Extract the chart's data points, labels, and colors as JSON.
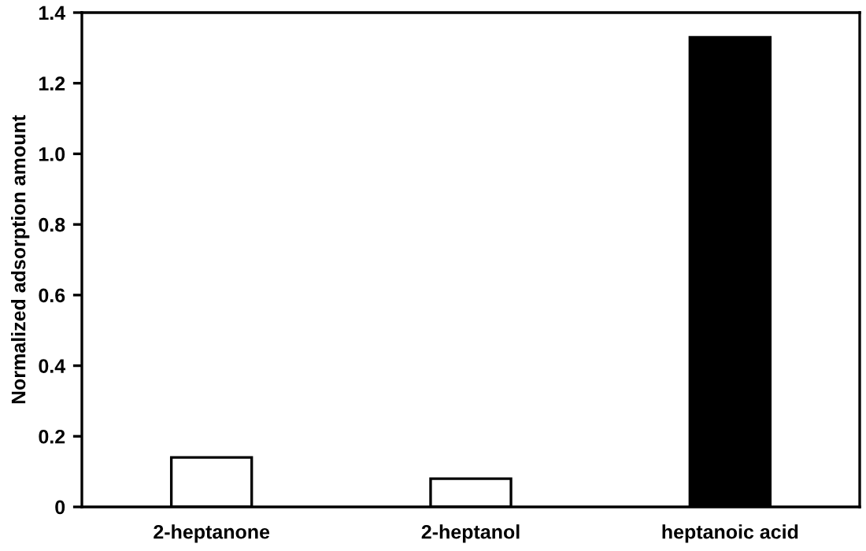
{
  "chart_data": {
    "type": "bar",
    "ylabel": "Normalized adsorption amount",
    "categories": [
      "2-heptanone",
      "2-heptanol",
      "heptanoic acid"
    ],
    "values": [
      0.14,
      0.08,
      1.33
    ],
    "colors": [
      "#ffffff",
      "#ffffff",
      "#000000"
    ],
    "ylim": [
      0,
      1.4
    ],
    "yticks": [
      0,
      0.2,
      0.4,
      0.6,
      0.8,
      {
        "value": 1.0,
        "label": "1.0"
      },
      1.2,
      1.4
    ],
    "grid": false,
    "legend": false
  }
}
